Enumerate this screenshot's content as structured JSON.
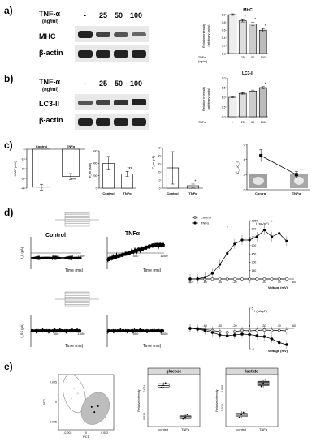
{
  "panel_labels": [
    "a)",
    "b)",
    "c)",
    "d)",
    "e)"
  ],
  "blot": {
    "tnf_label": "TNF-α",
    "unit_label": "(ng/ml)",
    "doses": [
      "-",
      "25",
      "50",
      "100"
    ],
    "panel_a_band": "MHC",
    "panel_b_band": "LC3-II",
    "loading_control": "β-actin"
  },
  "text": {
    "rel_intensity": "Relative intensity",
    "arbitrary": "(arbitrary units)",
    "tnfa": "TNFα",
    "tnf_ngml": "(ng/ml)",
    "control": "Control",
    "control_lc": "control",
    "time_ms": "Time (ms)",
    "voltage": "Voltage (mV)",
    "current_density": "I (pA/pF)",
    "il": "I_L (pA)",
    "isum": "I_SS (pA)",
    "mmp": "MMP (mV)",
    "rm": "R_m (MΩ)",
    "cm": "C_m (pF)",
    "ratio": "C_L/C_S",
    "pc1": "PC1",
    "pc2": "PC2",
    "glucose": "glucose",
    "lactate": "lactate",
    "sig1": "*",
    "sig3": "***",
    "sig4": "****"
  },
  "chart_data": [
    {
      "id": "a-mhc",
      "type": "bar",
      "title": "MHC",
      "categories": [
        "-",
        "25",
        "50",
        "100"
      ],
      "values": [
        1.0,
        0.84,
        0.76,
        0.6
      ],
      "errors": [
        0.02,
        0.03,
        0.04,
        0.04
      ],
      "ylim": [
        0,
        1.0
      ],
      "yticks": [
        0.0,
        0.2,
        0.4,
        0.6,
        0.8,
        1.0
      ]
    },
    {
      "id": "b-lc3",
      "type": "bar",
      "title": "LC3-II",
      "categories": [
        "-",
        "25",
        "50",
        "100"
      ],
      "values": [
        1.0,
        1.2,
        1.32,
        1.5
      ],
      "errors": [
        0.02,
        0.04,
        0.05,
        0.05
      ],
      "ylim": [
        0,
        2.0
      ],
      "yticks": [
        0.0,
        0.5,
        1.0,
        1.5,
        2.0
      ]
    },
    {
      "id": "c-mmp",
      "type": "bar",
      "categories": [
        "Control",
        "TNFα"
      ],
      "values": [
        -39,
        -28
      ],
      "errors": [
        3,
        3
      ],
      "ylim": [
        -40,
        0
      ],
      "yticks": [
        0,
        -10,
        -20,
        -30,
        -40
      ]
    },
    {
      "id": "c-rm",
      "type": "bar",
      "categories": [
        "Control",
        "TNFα"
      ],
      "values": [
        400,
        230
      ],
      "errors": [
        110,
        40
      ],
      "ylim": [
        0,
        600
      ],
      "yticks": [
        0,
        200,
        400,
        600
      ]
    },
    {
      "id": "c-cm",
      "type": "bar",
      "categories": [
        "Control",
        "TNFα"
      ],
      "values": [
        25,
        3
      ],
      "errors": [
        20,
        2
      ],
      "ylim": [
        0,
        50
      ],
      "yticks": [
        0,
        10,
        20,
        30,
        40,
        50
      ]
    },
    {
      "id": "c-ratio",
      "type": "line",
      "categories": [
        "Control",
        "TNFα"
      ],
      "values": [
        4.5,
        2.0
      ],
      "errors": [
        0.8,
        0.4
      ],
      "ylim": [
        0,
        6
      ],
      "yticks": [
        0,
        2,
        4,
        6
      ]
    },
    {
      "id": "d-iv-top",
      "type": "line",
      "x": [
        -80,
        -70,
        -60,
        -50,
        -40,
        -30,
        -20,
        -10,
        0,
        10,
        20,
        30,
        40,
        50
      ],
      "series": [
        {
          "name": "Control",
          "values": [
            0,
            0,
            0,
            0,
            0,
            0,
            0,
            0,
            0,
            0,
            0,
            0,
            0,
            0
          ]
        },
        {
          "name": "TNFα",
          "values": [
            0,
            5,
            30,
            100,
            260,
            460,
            630,
            700,
            700,
            760,
            880,
            760,
            820,
            680
          ]
        }
      ],
      "xlim": [
        -80,
        60
      ],
      "ylim": [
        0,
        1050
      ],
      "xticks": [
        -80,
        -60,
        -40,
        -20,
        0,
        20,
        40,
        60
      ],
      "yticks": [
        0,
        150,
        300,
        450,
        600,
        750,
        900,
        1050
      ]
    },
    {
      "id": "d-iv-bottom",
      "type": "line",
      "x": [
        -80,
        -70,
        -60,
        -50,
        -40,
        -30,
        -20,
        -10,
        0,
        10,
        20,
        30,
        40,
        50
      ],
      "series": [
        {
          "name": "Control",
          "values": [
            0,
            0,
            -0.3,
            -0.5,
            -0.8,
            -1.0,
            -0.8,
            -0.5,
            -0.6,
            -0.5,
            -0.4,
            -0.5,
            -0.5,
            -0.6
          ]
        },
        {
          "name": "TNFα",
          "values": [
            0,
            -0.2,
            -0.5,
            -1.0,
            -1.6,
            -1.8,
            -1.6,
            -1.4,
            -1.5,
            -1.8,
            -2.0,
            -2.6,
            -3.5,
            -4.0
          ]
        }
      ],
      "xlim": [
        -80,
        60
      ],
      "ylim": [
        -5,
        5
      ],
      "xticks": [
        -60,
        -40,
        -20,
        0,
        20,
        40,
        60
      ],
      "yticks": [
        5,
        0,
        -5
      ]
    },
    {
      "id": "e-pca",
      "type": "scatter",
      "xlabel": "PC1",
      "ylabel": "PC2",
      "xticks": [
        -0.002,
        0,
        0.002
      ],
      "yticks": [
        0.005,
        0,
        -0.005
      ],
      "series": [
        {
          "name": "control",
          "points": [
            [
              -0.0013,
              0.0035
            ],
            [
              -0.0009,
              0.0022
            ],
            [
              -0.0016,
              0.0009
            ]
          ]
        },
        {
          "name": "TNFα",
          "points": [
            [
              0.0006,
              -0.0012
            ],
            [
              0.0013,
              -0.001
            ],
            [
              0.0009,
              -0.0025
            ]
          ]
        }
      ]
    },
    {
      "id": "e-glucose",
      "type": "box",
      "title": "glucose",
      "categories": [
        "control",
        "TNFα"
      ],
      "yticks": [
        0.024,
        0.016
      ],
      "ylim": [
        0.013,
        0.028
      ]
    },
    {
      "id": "e-lactate",
      "type": "box",
      "title": "lactate",
      "categories": [
        "control",
        "TNFα"
      ],
      "yticks": [
        0.028,
        0.024
      ],
      "ylim": [
        0.02,
        0.031
      ]
    }
  ]
}
